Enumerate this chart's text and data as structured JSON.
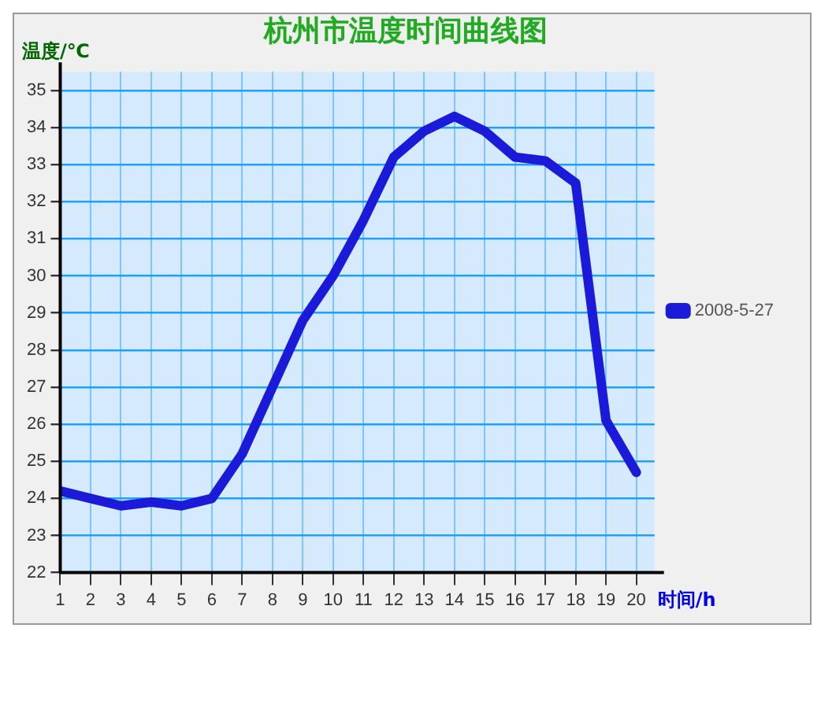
{
  "chart_data": {
    "type": "line",
    "title": "杭州市温度时间曲线图",
    "xlabel": "时间/h",
    "ylabel": "温度/℃",
    "x": [
      1,
      2,
      3,
      4,
      5,
      6,
      7,
      8,
      9,
      10,
      11,
      12,
      13,
      14,
      15,
      16,
      17,
      18,
      19,
      20
    ],
    "series": [
      {
        "name": "2008-5-27",
        "color": "#1a1ad8",
        "values": [
          24.2,
          24.0,
          23.8,
          23.9,
          23.8,
          24.0,
          25.2,
          27.0,
          28.8,
          30.0,
          31.5,
          33.2,
          33.9,
          34.3,
          33.9,
          33.2,
          33.1,
          32.5,
          26.1,
          24.7
        ]
      }
    ],
    "xlim": [
      1,
      20.6
    ],
    "xticks": [
      1,
      2,
      3,
      4,
      5,
      6,
      7,
      8,
      9,
      10,
      11,
      12,
      13,
      14,
      15,
      16,
      17,
      18,
      19,
      20
    ],
    "ylim": [
      22,
      35.5
    ],
    "yticks": [
      22,
      23,
      24,
      25,
      26,
      27,
      28,
      29,
      30,
      31,
      32,
      33,
      34,
      35
    ],
    "grid": true,
    "legend": "right",
    "marker": "none",
    "line_style": "solid"
  }
}
